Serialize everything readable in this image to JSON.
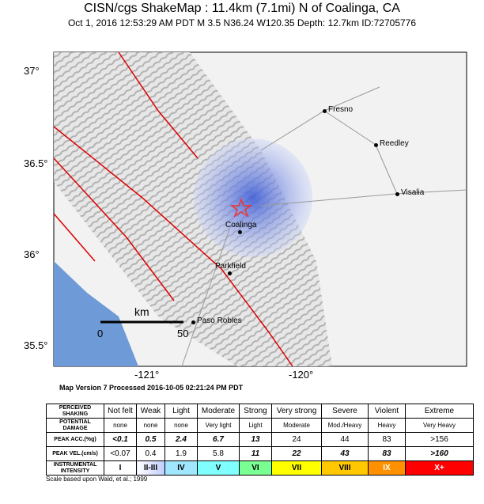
{
  "header": {
    "title": "CISN/cgs ShakeMap : 11.4km (7.1mi) N of Coalinga, CA",
    "subtitle": "Oct  1, 2016 12:53:29 AM PDT   M 3.5   N36.24 W120.35   Depth: 12.7km   ID:72705776"
  },
  "map": {
    "lat_labels": [
      "37°",
      "36.5°",
      "36°",
      "35.5°"
    ],
    "lon_labels": [
      "-121°",
      "-120°"
    ],
    "cities": [
      "Fresno",
      "Reedley",
      "Visalia",
      "Coalinga",
      "Parkfield",
      "Paso Robles"
    ],
    "scale": {
      "unit": "km",
      "start": "0",
      "end": "50"
    },
    "version": "Map Version 7 Processed 2016-10-05 02:21:24 PM PDT"
  },
  "table": {
    "row_headers": [
      "PERCEIVED SHAKING",
      "POTENTIAL DAMAGE",
      "PEAK ACC.(%g)",
      "PEAK VEL.(cm/s)",
      "INSTRUMENTAL INTENSITY"
    ],
    "rows": [
      [
        "Not felt",
        "Weak",
        "Light",
        "Moderate",
        "Strong",
        "Very strong",
        "Severe",
        "Violent",
        "Extreme"
      ],
      [
        "none",
        "none",
        "none",
        "Very light",
        "Light",
        "Moderate",
        "Mod./Heavy",
        "Heavy",
        "Very Heavy"
      ],
      [
        "<0.1",
        "0.5",
        "2.4",
        "6.7",
        "13",
        "24",
        "44",
        "83",
        ">156"
      ],
      [
        "<0.07",
        "0.4",
        "1.9",
        "5.8",
        "11",
        "22",
        "43",
        "83",
        ">160"
      ],
      [
        "I",
        "II-III",
        "IV",
        "V",
        "VI",
        "VII",
        "VIII",
        "IX",
        "X+"
      ]
    ]
  },
  "footer": "Scale based upon Wald, et al.; 1999"
}
